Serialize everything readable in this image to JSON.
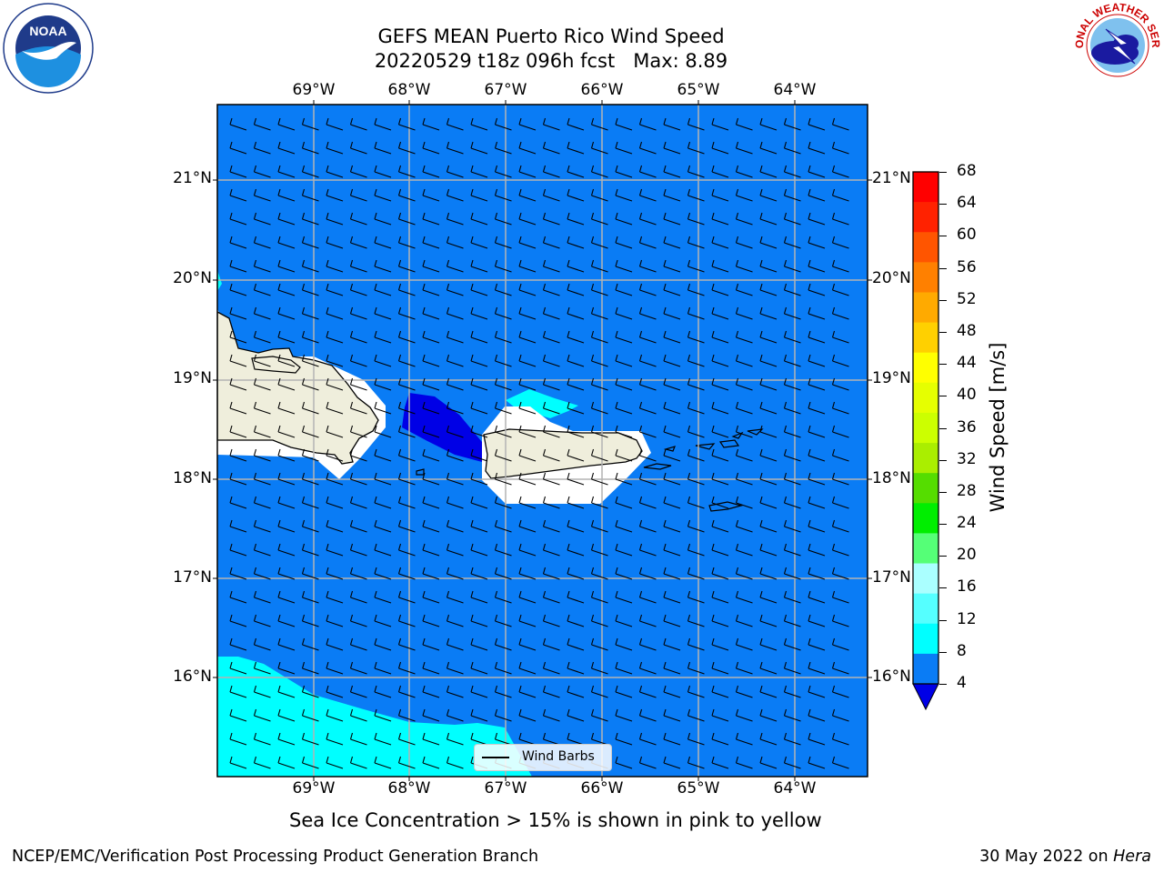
{
  "title": {
    "line1": "GEFS MEAN Puerto Rico Wind Speed",
    "line2": "20220529 t18z 096h fcst   Max: 8.89"
  },
  "map": {
    "lon_labels": [
      "69°W",
      "68°W",
      "67°W",
      "66°W",
      "65°W",
      "64°W"
    ],
    "lat_labels": [
      "21°N",
      "20°N",
      "19°N",
      "18°N",
      "17°N",
      "16°N"
    ],
    "ocean_color": "#0a7cf5",
    "high_wind_color": "#00ffff",
    "low_wind_color": "#0000e6",
    "land_color": "#efeedc"
  },
  "colorbar": {
    "label": "Wind Speed [m/s]",
    "ticks": [
      "68",
      "64",
      "60",
      "56",
      "52",
      "48",
      "44",
      "40",
      "36",
      "32",
      "28",
      "24",
      "20",
      "16",
      "12",
      "8",
      "4"
    ],
    "colors": [
      "#ff0000",
      "#ff2200",
      "#ff5500",
      "#ff8000",
      "#ffaa00",
      "#ffd000",
      "#ffff00",
      "#e6ff00",
      "#ccff00",
      "#aaee00",
      "#55dd00",
      "#00ee00",
      "#55ff77",
      "#aaffff",
      "#55ffff",
      "#00ffff",
      "#0a7cf5"
    ],
    "extend_color": "#0000e6"
  },
  "legend": {
    "label": "Wind Barbs"
  },
  "caption": "Sea Ice Concentration > 15% is shown in pink to yellow",
  "footer": {
    "left": "NCEP/EMC/Verification Post Processing Product Generation Branch",
    "right_prefix": "30 May 2022 on ",
    "right_host": "Hera"
  },
  "logos": {
    "left": "NOAA",
    "right": "NATIONAL WEATHER SERVICE"
  }
}
